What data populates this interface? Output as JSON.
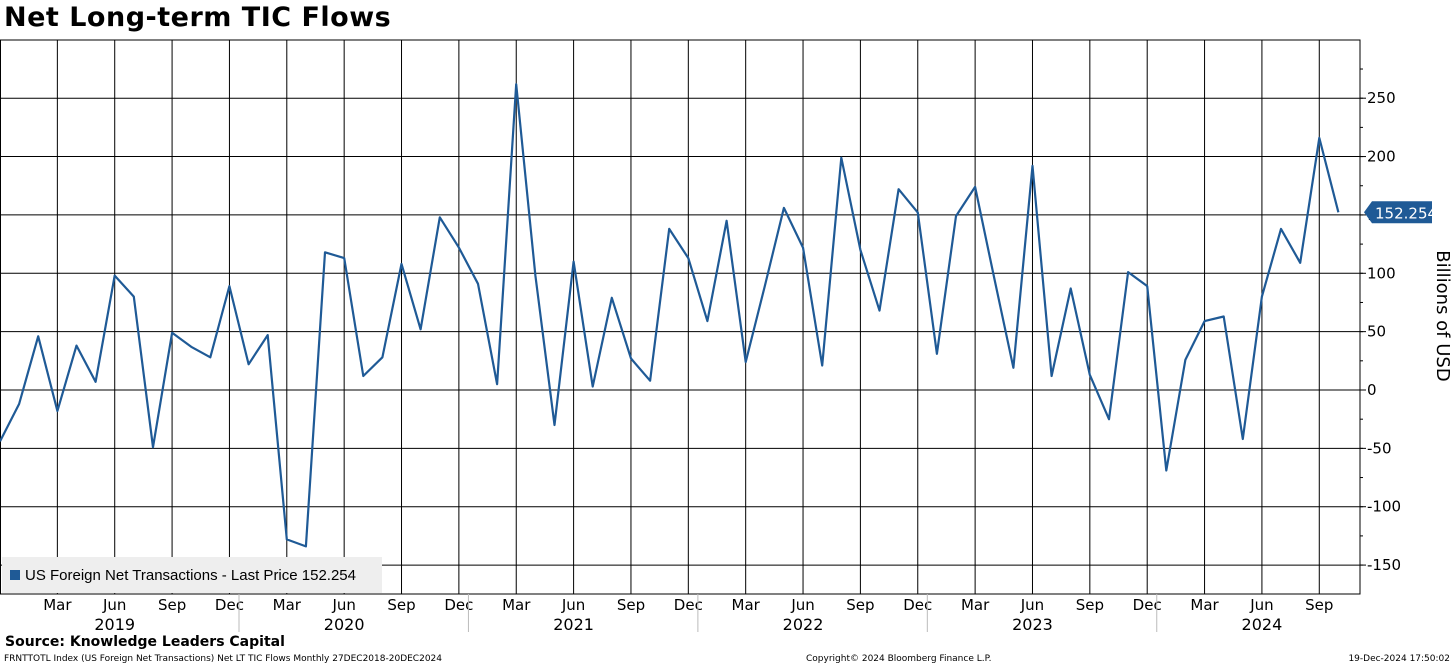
{
  "title": "Net Long-term TIC Flows",
  "source": "Source: Knowledge Leaders Capital",
  "footer": {
    "left": "FRNTTOTL Index (US Foreign Net Transactions) Net LT TIC Flows  Monthly 27DEC2018-20DEC2024",
    "center": "Copyright© 2024 Bloomberg Finance L.P.",
    "right": "19-Dec-2024 17:50:02"
  },
  "legend": {
    "label": "US Foreign Net Transactions - Last Price 152.254",
    "color": "#1f5a96"
  },
  "last_price_label": "152.254",
  "chart_data": {
    "type": "line",
    "title": "Net Long-term TIC Flows",
    "ylabel": "Billions of USD",
    "ylim": [
      -175,
      300
    ],
    "yticks": [
      -150,
      -100,
      -50,
      0,
      50,
      100,
      150,
      200,
      250
    ],
    "grid": true,
    "legend_position": "bottom-left",
    "x_month_ticks": [
      "Mar",
      "Jun",
      "Sep",
      "Dec",
      "Mar",
      "Jun",
      "Sep",
      "Dec",
      "Mar",
      "Jun",
      "Sep",
      "Dec",
      "Mar",
      "Jun",
      "Sep",
      "Dec",
      "Mar",
      "Jun",
      "Sep",
      "Dec",
      "Mar",
      "Jun",
      "Sep"
    ],
    "x_year_labels": [
      "2019",
      "2020",
      "2021",
      "2022",
      "2023",
      "2024"
    ],
    "series": [
      {
        "name": "US Foreign Net Transactions",
        "color": "#1f5a96",
        "x": [
          "2018-12",
          "2019-01",
          "2019-02",
          "2019-03",
          "2019-04",
          "2019-05",
          "2019-06",
          "2019-07",
          "2019-08",
          "2019-09",
          "2019-10",
          "2019-11",
          "2019-12",
          "2020-01",
          "2020-02",
          "2020-03",
          "2020-04",
          "2020-05",
          "2020-06",
          "2020-07",
          "2020-08",
          "2020-09",
          "2020-10",
          "2020-11",
          "2020-12",
          "2021-01",
          "2021-02",
          "2021-03",
          "2021-04",
          "2021-05",
          "2021-06",
          "2021-07",
          "2021-08",
          "2021-09",
          "2021-10",
          "2021-11",
          "2021-12",
          "2022-01",
          "2022-02",
          "2022-03",
          "2022-04",
          "2022-05",
          "2022-06",
          "2022-07",
          "2022-08",
          "2022-09",
          "2022-10",
          "2022-11",
          "2022-12",
          "2023-01",
          "2023-02",
          "2023-03",
          "2023-04",
          "2023-05",
          "2023-06",
          "2023-07",
          "2023-08",
          "2023-09",
          "2023-10",
          "2023-11",
          "2023-12",
          "2024-01",
          "2024-02",
          "2024-03",
          "2024-04",
          "2024-05",
          "2024-06",
          "2024-07",
          "2024-08",
          "2024-09",
          "2024-10"
        ],
        "values": [
          -44,
          -12,
          46,
          -18,
          38,
          7,
          98,
          80,
          -49,
          49,
          37,
          28,
          89,
          22,
          47,
          -128,
          -134,
          118,
          113,
          12,
          28,
          108,
          52,
          148,
          122,
          91,
          5,
          262,
          98,
          -30,
          110,
          3,
          79,
          27,
          8,
          138,
          113,
          59,
          145,
          24,
          89,
          156,
          122,
          21,
          199,
          120,
          68,
          172,
          152,
          31,
          149,
          174,
          96,
          19,
          192,
          12,
          87,
          13,
          -25,
          101,
          89,
          -69,
          26,
          59,
          63,
          -42,
          80,
          138,
          109,
          216,
          152.254
        ]
      }
    ]
  }
}
